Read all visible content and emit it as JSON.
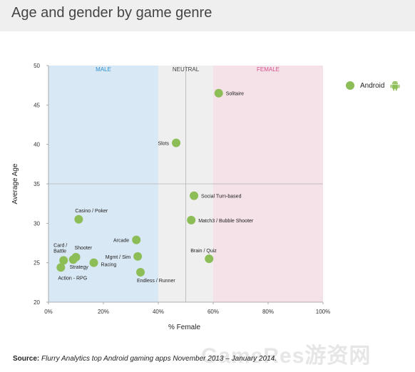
{
  "page": {
    "title": "Age and gender by game genre"
  },
  "legend": {
    "label": "Android",
    "icon": "android-robot-icon",
    "color": "#8cbd57"
  },
  "source": {
    "label": "Source:",
    "text": "Flurry Analytics top Android gaming apps November 2013 – January 2014."
  },
  "watermark": "GameRes游资网",
  "chart_data": {
    "type": "scatter",
    "xlabel": "% Female",
    "ylabel": "Average Age",
    "xlim": [
      0,
      100
    ],
    "ylim": [
      20,
      50
    ],
    "xticks": [
      "0%",
      "20%",
      "40%",
      "60%",
      "80%",
      "100%"
    ],
    "yticks": [
      "20",
      "25",
      "30",
      "35",
      "40",
      "45",
      "50"
    ],
    "grid": false,
    "legend_position": "top-right",
    "regions": [
      {
        "label": "MALE",
        "x_range": [
          0,
          40
        ],
        "color": "#d9e8f5",
        "label_color": "#2f8fcf"
      },
      {
        "label": "NEUTRAL",
        "x_range": [
          40,
          60
        ],
        "color": "#efefef",
        "label_color": "#444444"
      },
      {
        "label": "FEMALE",
        "x_range": [
          60,
          100
        ],
        "color": "#f5e1e8",
        "label_color": "#d6508a"
      }
    ],
    "series": [
      {
        "name": "Android",
        "color": "#8cbd57",
        "points": [
          {
            "label": "Solitaire",
            "x": 62,
            "y": 46.5
          },
          {
            "label": "Slots",
            "x": 46.5,
            "y": 40.2
          },
          {
            "label": "Social Turn-based",
            "x": 53,
            "y": 33.5
          },
          {
            "label": "Casino / Poker",
            "x": 11,
            "y": 30.5
          },
          {
            "label": "Match3 / Bubble Shooter",
            "x": 52,
            "y": 30.4
          },
          {
            "label": "Arcade",
            "x": 32,
            "y": 27.9
          },
          {
            "label": "Brain / Quiz",
            "x": 58.5,
            "y": 25.5
          },
          {
            "label": "Mgmt / Sim",
            "x": 32.5,
            "y": 25.8
          },
          {
            "label": "Card / Battle",
            "x": 5.5,
            "y": 25.3
          },
          {
            "label": "Shooter",
            "x": 10,
            "y": 25.7
          },
          {
            "label": "Strategy",
            "x": 9,
            "y": 25.4
          },
          {
            "label": "Racing",
            "x": 16.5,
            "y": 25
          },
          {
            "label": "Action - RPG",
            "x": 4.5,
            "y": 24.4
          },
          {
            "label": "Endless / Runner",
            "x": 33.5,
            "y": 23.8
          }
        ]
      }
    ]
  }
}
